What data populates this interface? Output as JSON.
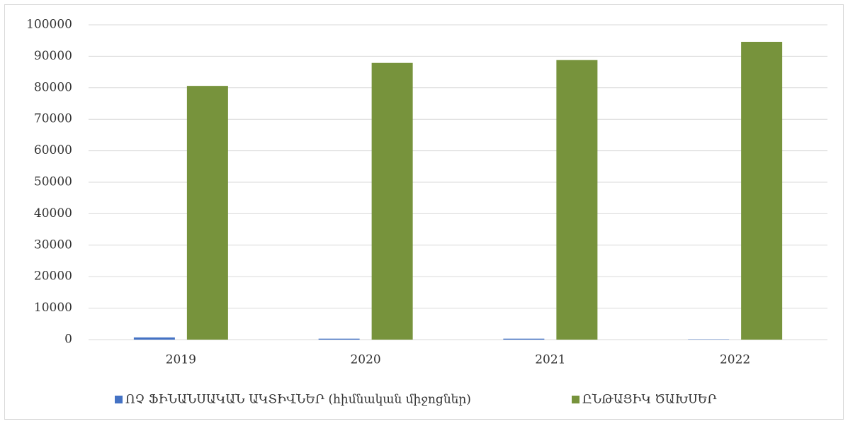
{
  "chart_data": {
    "type": "bar",
    "categories": [
      "2019",
      "2020",
      "2021",
      "2022"
    ],
    "series": [
      {
        "name": "ՈՉ ՖԻՆԱՆՍԱԿԱՆ ԱԿՏԻՎՆԵՐ (հիմնական միջոցներ)",
        "color": "#4472c4",
        "values": [
          700,
          300,
          300,
          100
        ]
      },
      {
        "name": "ԸՆԹԱՑԻԿ ԾԱԽՍԵՐ",
        "color": "#77933c",
        "values": [
          80600,
          87900,
          88800,
          94600
        ]
      }
    ],
    "ylim": [
      0,
      100000
    ],
    "yticks": [
      0,
      10000,
      20000,
      30000,
      40000,
      50000,
      60000,
      70000,
      80000,
      90000,
      100000
    ],
    "grid": true,
    "legend": "bottom"
  }
}
